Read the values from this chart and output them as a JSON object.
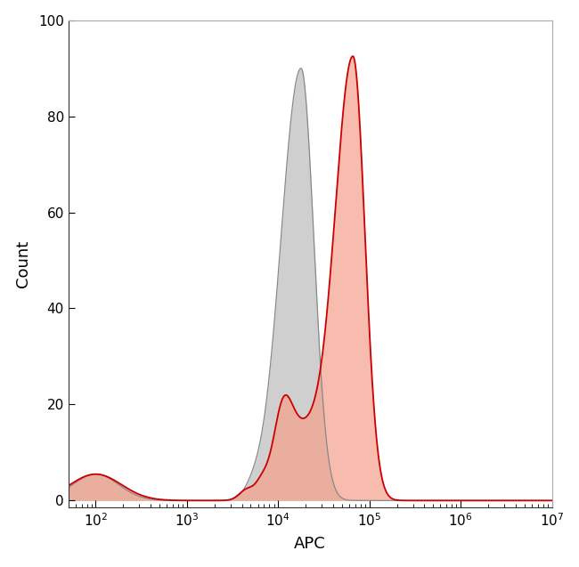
{
  "xlabel": "APC",
  "ylabel": "Count",
  "xlim_log_min": 1.7,
  "xlim_log_max": 7.0,
  "ylim": [
    -1.5,
    100
  ],
  "yticks": [
    0,
    20,
    40,
    60,
    80,
    100
  ],
  "background_color": "#ffffff",
  "gray_fill_color": "#c0c0c0",
  "gray_edge_color": "#888888",
  "red_fill_color": "#f5a08a",
  "red_edge_color": "#cc0000",
  "gray_alpha": 0.75,
  "red_alpha": 0.7
}
